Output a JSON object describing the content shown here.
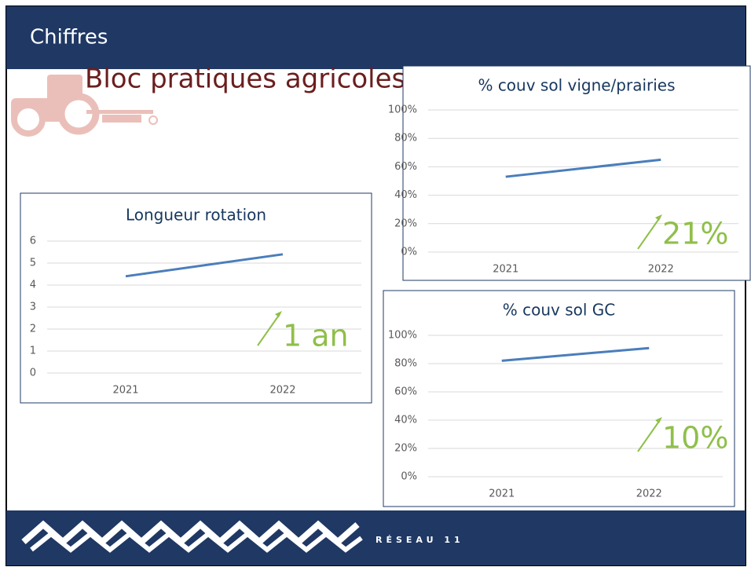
{
  "header": {
    "title": "Chiffres",
    "subtitle": "Bloc pratiques agricoles"
  },
  "footer": {
    "brand": "RÉSEAU 11"
  },
  "chart_data": [
    {
      "type": "line",
      "title": "Longueur rotation",
      "categories": [
        "2021",
        "2022"
      ],
      "values": [
        4.4,
        5.4
      ],
      "color": "#4a7ebb",
      "ylim": [
        0,
        6
      ],
      "yticks": [
        0,
        1,
        2,
        3,
        4,
        5,
        6
      ],
      "grid": true,
      "annotation": "1 an"
    },
    {
      "type": "line",
      "title": "% couv sol vigne/prairies",
      "categories": [
        "2021",
        "2022"
      ],
      "values": [
        53,
        65
      ],
      "color": "#4a7ebb",
      "ylim": [
        0,
        100
      ],
      "yticks": [
        {
          "value": 0,
          "label": "0%"
        },
        {
          "value": 20,
          "label": "20%"
        },
        {
          "value": 40,
          "label": "40%"
        },
        {
          "value": 60,
          "label": "60%"
        },
        {
          "value": 80,
          "label": "80%"
        },
        {
          "value": 100,
          "label": "100%"
        }
      ],
      "grid": true,
      "annotation": "21%"
    },
    {
      "type": "line",
      "title": "% couv sol GC",
      "categories": [
        "2021",
        "2022"
      ],
      "values": [
        82,
        91
      ],
      "color": "#4a7ebb",
      "ylim": [
        0,
        100
      ],
      "yticks": [
        {
          "value": 0,
          "label": "0%"
        },
        {
          "value": 20,
          "label": "20%"
        },
        {
          "value": 40,
          "label": "40%"
        },
        {
          "value": 60,
          "label": "60%"
        },
        {
          "value": 80,
          "label": "80%"
        },
        {
          "value": 100,
          "label": "100%"
        }
      ],
      "grid": true,
      "annotation": "10%"
    }
  ]
}
